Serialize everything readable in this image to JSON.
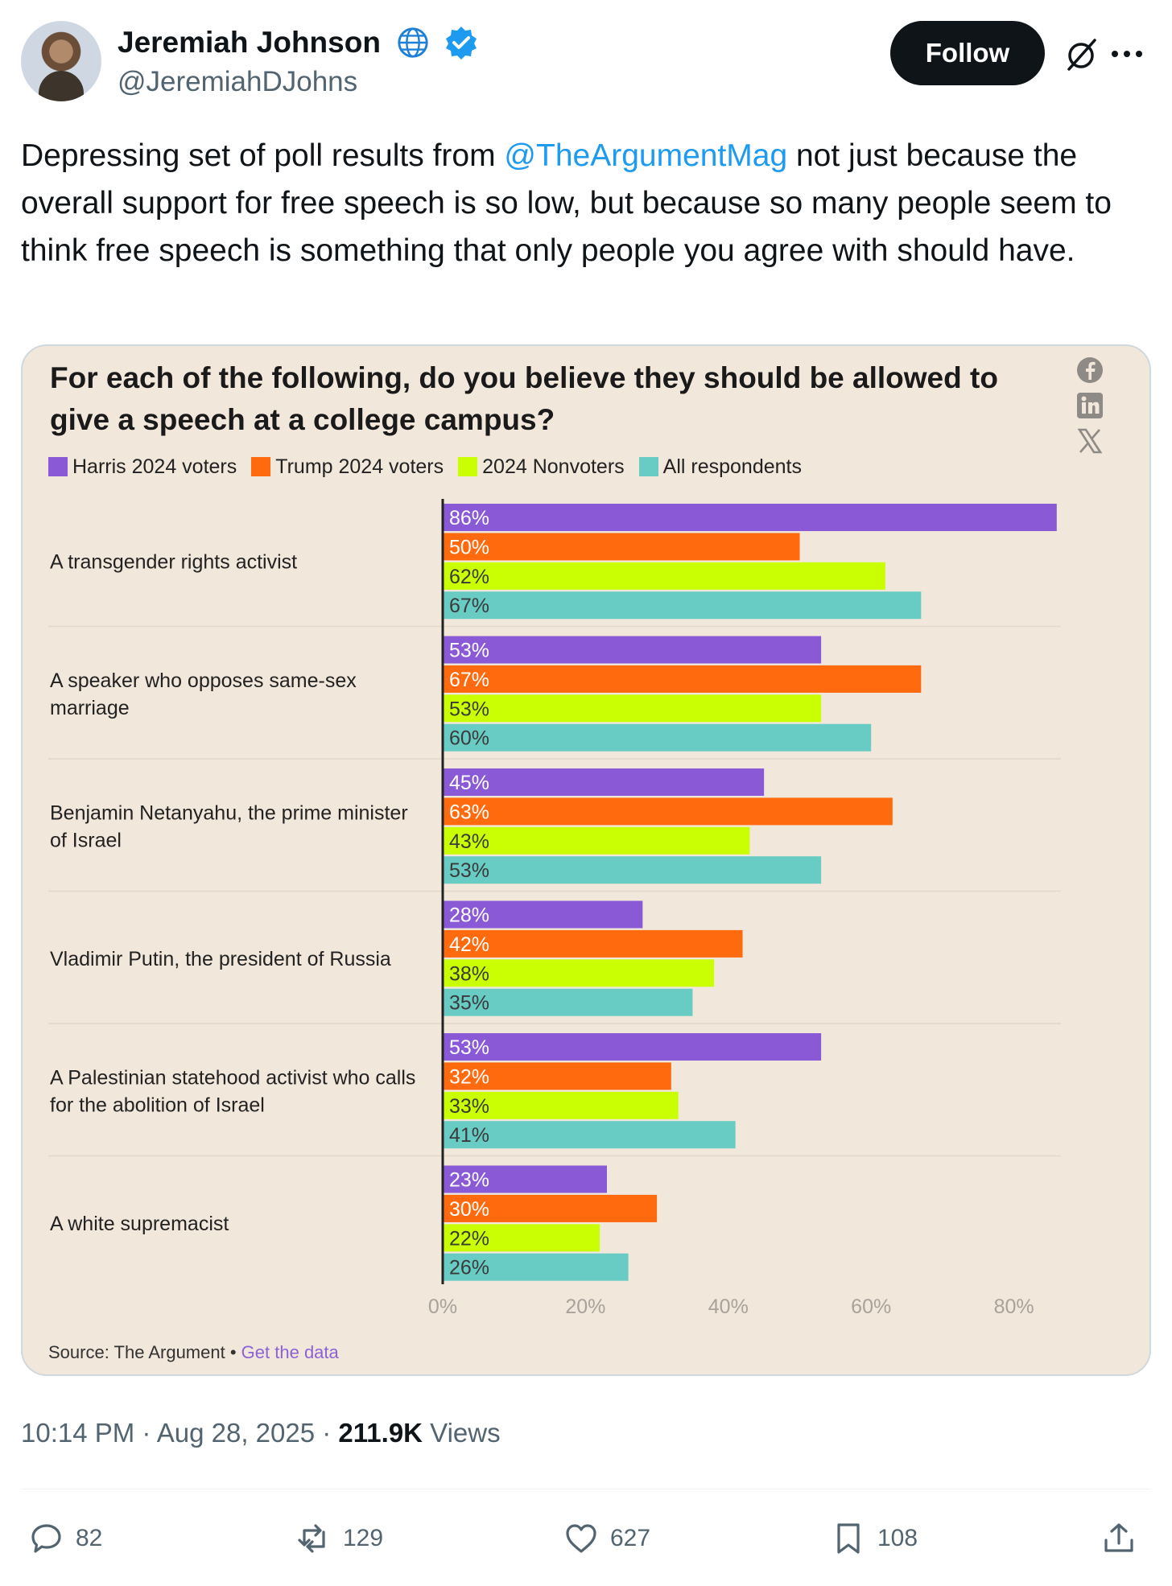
{
  "author": {
    "name": "Jeremiah Johnson",
    "handle": "@JeremiahDJohns"
  },
  "follow_label": "Follow",
  "tweet": {
    "part1": "Depressing set of poll results from ",
    "mention": "@TheArgumentMag",
    "part2": " not just because the overall support for free speech is so low, but because so many people seem to think free speech is something that only people you agree with should have."
  },
  "chart_data": {
    "type": "bar",
    "orientation": "horizontal",
    "title": "For each of the following, do you believe they should be allowed to give a speech at a college campus?",
    "categories": [
      [
        "A transgender rights activist"
      ],
      [
        "A speaker who opposes same-sex",
        "marriage"
      ],
      [
        "Benjamin Netanyahu, the prime minister",
        "of Israel"
      ],
      [
        "Vladimir Putin, the president of Russia"
      ],
      [
        "A Palestinian statehood activist who calls",
        "for the abolition of Israel"
      ],
      [
        "A white supremacist"
      ]
    ],
    "series": [
      {
        "name": "Harris 2024 voters",
        "color": "#8a5ad6",
        "values": [
          86,
          53,
          45,
          28,
          53,
          23
        ]
      },
      {
        "name": "Trump 2024 voters",
        "color": "#ff6a0e",
        "values": [
          50,
          67,
          63,
          42,
          32,
          30
        ]
      },
      {
        "name": "2024 Nonvoters",
        "color": "#c9ff02",
        "values": [
          62,
          53,
          43,
          38,
          33,
          22
        ]
      },
      {
        "name": "All respondents",
        "color": "#68ccc4",
        "values": [
          67,
          60,
          53,
          35,
          41,
          26
        ]
      }
    ],
    "xlim": [
      0,
      90
    ],
    "x_ticks": [
      0,
      20,
      40,
      60,
      80
    ],
    "x_tick_labels": [
      "0%",
      "20%",
      "40%",
      "60%",
      "80%"
    ],
    "value_suffix": "%",
    "legend_position": "top",
    "source_prefix": "Source: The Argument",
    "source_separator": " • ",
    "source_link": "Get the data"
  },
  "meta": {
    "time": "10:14 PM · Aug 28, 2025 · ",
    "views_count": "211.9K",
    "views_label": " Views"
  },
  "actions": {
    "replies": "82",
    "reposts": "129",
    "likes": "627",
    "bookmarks": "108"
  },
  "colors": {
    "accent": "#1d9bf0",
    "card_bg": "#f1e7da"
  }
}
